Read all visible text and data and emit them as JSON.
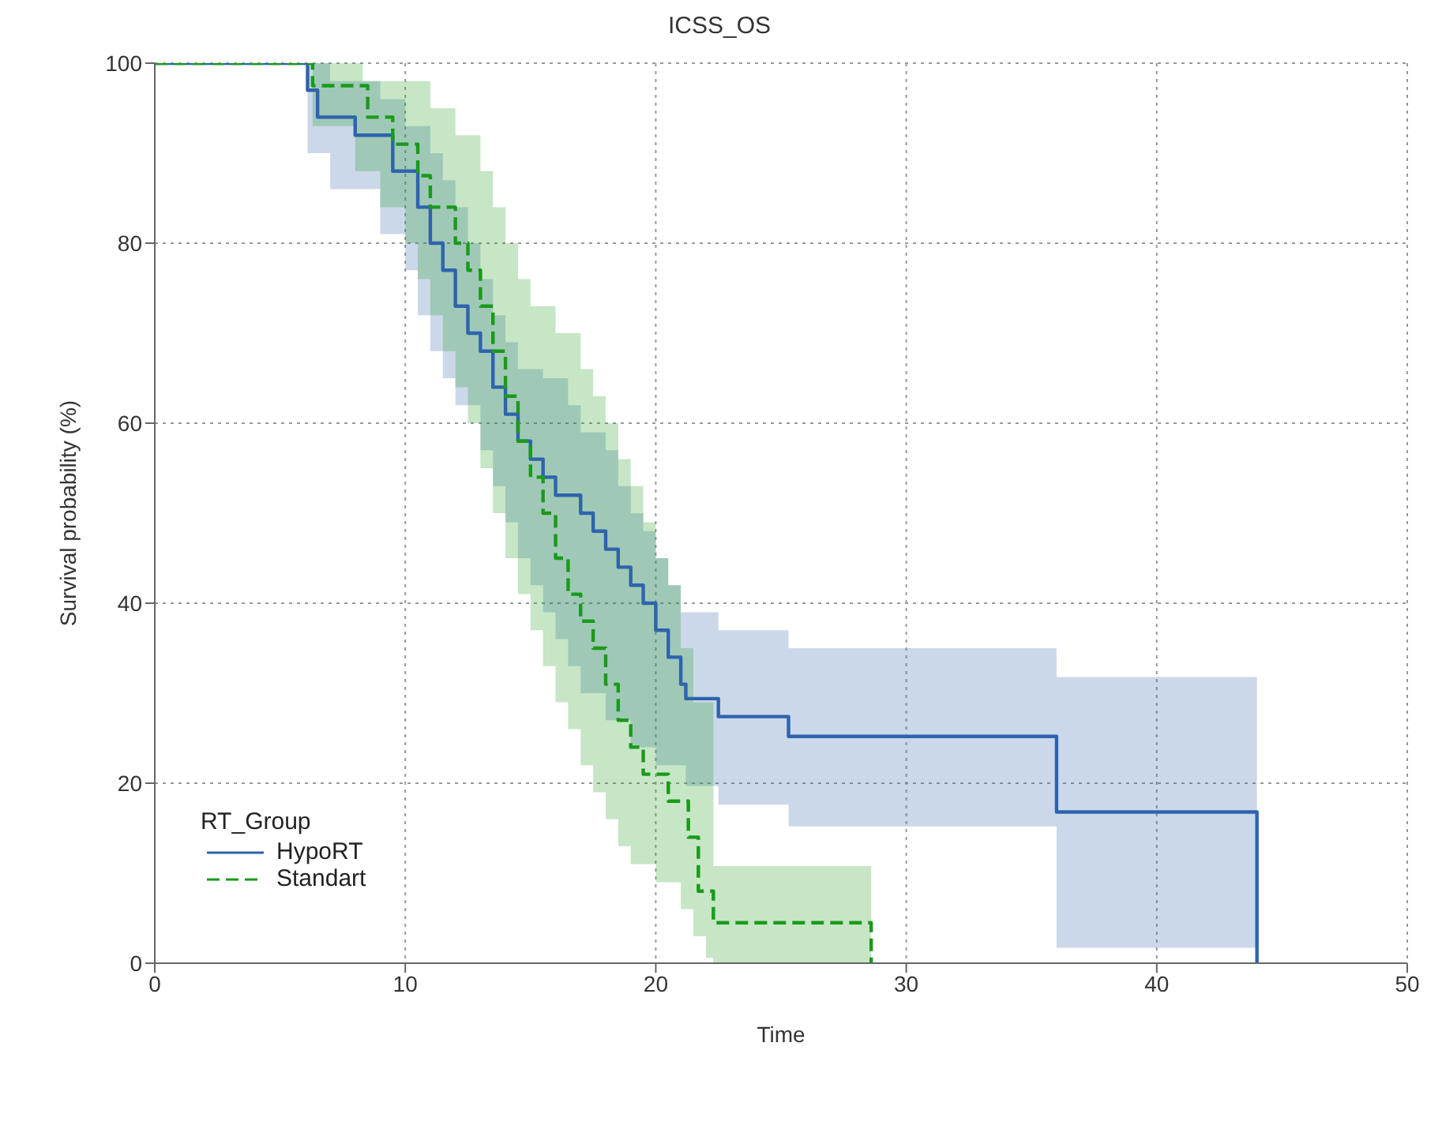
{
  "chart_data": {
    "type": "step",
    "title": "ICSS_OS",
    "xlabel": "Time",
    "ylabel": "Survival probability (%)",
    "legend_title": "RT_Group",
    "xlim": [
      0,
      50
    ],
    "xticks": [
      0,
      10,
      20,
      30,
      40,
      50
    ],
    "ylim": [
      0,
      100
    ],
    "yticks": [
      0,
      20,
      40,
      60,
      80,
      100
    ],
    "grid": true,
    "legend": "bottom left",
    "marker": "none",
    "series": [
      {
        "name": "HypoRT",
        "color": "#2e63ad",
        "line_style": "solid",
        "x": [
          0,
          6.1,
          6.5,
          7,
          8,
          9,
          9.5,
          10,
          10.5,
          11,
          11.5,
          12,
          12.5,
          13,
          13.5,
          14,
          14.5,
          15,
          15.5,
          16,
          16.5,
          17,
          17.5,
          18,
          18.5,
          19,
          19.5,
          20,
          20.5,
          21,
          21.2,
          22.5,
          25.3,
          36,
          44
        ],
        "values": [
          100,
          97,
          94,
          94,
          92,
          92,
          88,
          88,
          84,
          80,
          77,
          73,
          70,
          68,
          64,
          61,
          58,
          56,
          54,
          52,
          52,
          50,
          48,
          46,
          44,
          42,
          40,
          37,
          34,
          31,
          29.4,
          27.4,
          25.2,
          16.8,
          0
        ],
        "upper": [
          100,
          100,
          100,
          98,
          98,
          96,
          96,
          93,
          93,
          90,
          87,
          84,
          80,
          76,
          72,
          69,
          66,
          66,
          65,
          65,
          62,
          59,
          59,
          57,
          53,
          50,
          48,
          45,
          42,
          39,
          39,
          37,
          35,
          31.8,
          31.8
        ],
        "lower": [
          100,
          90,
          90,
          86,
          86,
          81,
          81,
          77,
          72,
          68,
          65,
          62,
          62,
          57,
          53,
          49,
          45,
          42,
          39,
          36,
          33,
          30,
          30,
          27,
          27,
          24,
          24,
          22,
          22,
          22,
          19.7,
          17.6,
          15.2,
          1.7,
          1.7
        ]
      },
      {
        "name": "Standart",
        "color": "#1a9a1a",
        "line_style": "dashed",
        "x": [
          0,
          6.3,
          8,
          8.3,
          8.5,
          9,
          9.5,
          10,
          10.5,
          11,
          11.5,
          12,
          12.5,
          13,
          13.5,
          14,
          14.5,
          15,
          15.5,
          16,
          16.5,
          17,
          17.5,
          18,
          18.5,
          19,
          19.5,
          20,
          20.5,
          21,
          21.3,
          21.5,
          21.7,
          22,
          22.3,
          28.6
        ],
        "values": [
          100,
          97.5,
          97.5,
          97.5,
          94,
          94,
          91,
          91,
          87.5,
          84,
          84,
          80,
          77,
          73,
          68,
          63,
          58,
          54,
          50,
          45,
          41,
          38,
          35,
          31,
          27,
          24,
          21,
          21,
          18,
          18,
          14,
          14,
          8,
          8,
          4.5,
          0
        ],
        "upper": [
          100,
          100,
          100,
          98,
          98,
          98,
          98,
          98,
          98,
          95,
          95,
          92,
          92,
          88,
          84,
          80,
          76,
          73,
          73,
          70,
          70,
          66,
          63,
          60,
          56,
          53,
          49,
          45,
          42,
          35,
          35,
          29,
          29,
          29,
          10.8,
          10.8
        ],
        "lower": [
          100,
          93,
          88,
          88,
          88,
          84,
          84,
          80,
          76,
          72,
          68,
          64,
          60,
          55,
          50,
          45,
          41,
          37,
          33,
          29,
          26,
          22,
          19,
          16,
          13,
          11,
          11,
          9,
          9,
          6,
          6,
          3,
          3,
          0.6,
          0,
          0
        ]
      }
    ]
  }
}
